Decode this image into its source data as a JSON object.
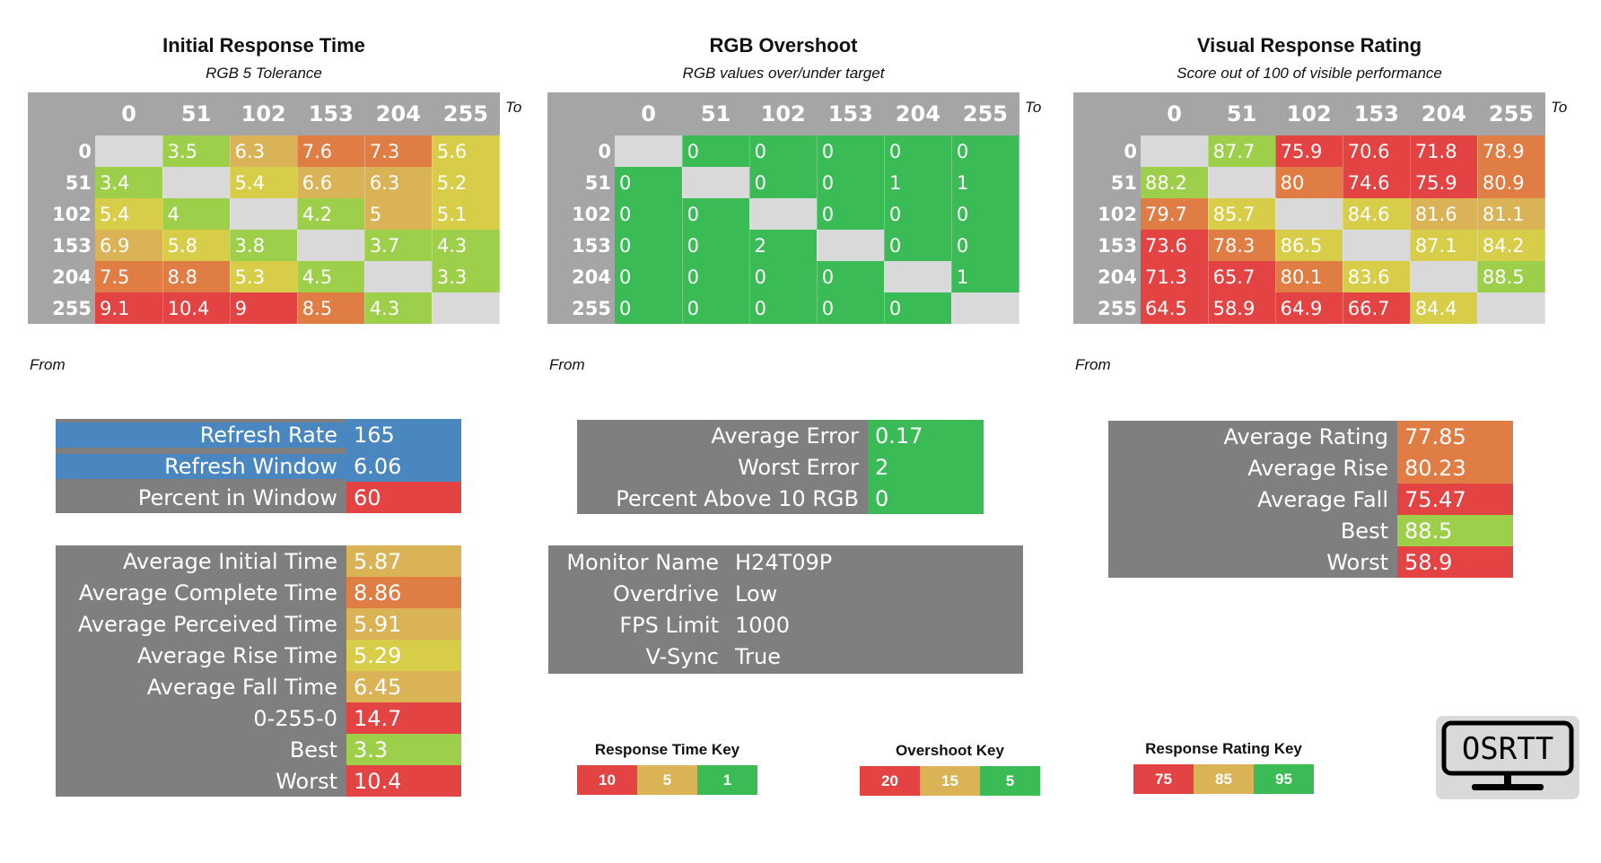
{
  "colors": {
    "red": "#e34343",
    "orange": "#e07d45",
    "gold": "#d9b356",
    "yellow": "#d8cd48",
    "lime": "#9dcf4a",
    "green": "#3bbb55",
    "diag": "#d9d9d9",
    "header": "#a5a5a5",
    "box": "#7f7f7f",
    "blue": "#4a86c0"
  },
  "corner": {
    "to": "To",
    "from": "From"
  },
  "chart_data": [
    {
      "type": "heatmap",
      "title": "Initial Response Time",
      "subtitle": "RGB 5 Tolerance",
      "xlabel": "To",
      "ylabel": "From",
      "x": [
        "0",
        "51",
        "102",
        "153",
        "204",
        "255"
      ],
      "y": [
        "0",
        "51",
        "102",
        "153",
        "204",
        "255"
      ],
      "values": [
        [
          null,
          "3.5",
          "6.3",
          "7.6",
          "7.3",
          "5.6"
        ],
        [
          "3.4",
          null,
          "5.4",
          "6.6",
          "6.3",
          "5.2"
        ],
        [
          "5.4",
          "4",
          null,
          "4.2",
          "5",
          "5.1"
        ],
        [
          "6.9",
          "5.8",
          "3.8",
          null,
          "3.7",
          "4.3"
        ],
        [
          "7.5",
          "8.8",
          "5.3",
          "4.5",
          null,
          "3.3"
        ],
        [
          "9.1",
          "10.4",
          "9",
          "8.5",
          "4.3",
          null
        ]
      ],
      "cell_colors": [
        [
          "diag",
          "lime",
          "gold",
          "orange",
          "orange",
          "yellow"
        ],
        [
          "lime",
          "diag",
          "yellow",
          "gold",
          "gold",
          "yellow"
        ],
        [
          "yellow",
          "lime",
          "diag",
          "lime",
          "gold",
          "yellow"
        ],
        [
          "gold",
          "yellow",
          "lime",
          "diag",
          "lime",
          "lime"
        ],
        [
          "orange",
          "orange",
          "yellow",
          "lime",
          "diag",
          "lime"
        ],
        [
          "red",
          "red",
          "red",
          "orange",
          "lime",
          "diag"
        ]
      ]
    },
    {
      "type": "heatmap",
      "title": "RGB Overshoot",
      "subtitle": "RGB values over/under target",
      "xlabel": "To",
      "ylabel": "From",
      "x": [
        "0",
        "51",
        "102",
        "153",
        "204",
        "255"
      ],
      "y": [
        "0",
        "51",
        "102",
        "153",
        "204",
        "255"
      ],
      "values": [
        [
          null,
          "0",
          "0",
          "0",
          "0",
          "0"
        ],
        [
          "0",
          null,
          "0",
          "0",
          "1",
          "1"
        ],
        [
          "0",
          "0",
          null,
          "0",
          "0",
          "0"
        ],
        [
          "0",
          "0",
          "2",
          null,
          "0",
          "0"
        ],
        [
          "0",
          "0",
          "0",
          "0",
          null,
          "1"
        ],
        [
          "0",
          "0",
          "0",
          "0",
          "0",
          null
        ]
      ],
      "cell_colors": [
        [
          "diag",
          "green",
          "green",
          "green",
          "green",
          "green"
        ],
        [
          "green",
          "diag",
          "green",
          "green",
          "green",
          "green"
        ],
        [
          "green",
          "green",
          "diag",
          "green",
          "green",
          "green"
        ],
        [
          "green",
          "green",
          "green",
          "diag",
          "green",
          "green"
        ],
        [
          "green",
          "green",
          "green",
          "green",
          "diag",
          "green"
        ],
        [
          "green",
          "green",
          "green",
          "green",
          "green",
          "diag"
        ]
      ]
    },
    {
      "type": "heatmap",
      "title": "Visual Response Rating",
      "subtitle": "Score out of 100 of visible performance",
      "xlabel": "To",
      "ylabel": "From",
      "x": [
        "0",
        "51",
        "102",
        "153",
        "204",
        "255"
      ],
      "y": [
        "0",
        "51",
        "102",
        "153",
        "204",
        "255"
      ],
      "values": [
        [
          null,
          "87.7",
          "75.9",
          "70.6",
          "71.8",
          "78.9"
        ],
        [
          "88.2",
          null,
          "80",
          "74.6",
          "75.9",
          "80.9"
        ],
        [
          "79.7",
          "85.7",
          null,
          "84.6",
          "81.6",
          "81.1"
        ],
        [
          "73.6",
          "78.3",
          "86.5",
          null,
          "87.1",
          "84.2"
        ],
        [
          "71.3",
          "65.7",
          "80.1",
          "83.6",
          null,
          "88.5"
        ],
        [
          "64.5",
          "58.9",
          "64.9",
          "66.7",
          "84.4",
          null
        ]
      ],
      "cell_colors": [
        [
          "diag",
          "lime",
          "red",
          "red",
          "red",
          "orange"
        ],
        [
          "lime",
          "diag",
          "orange",
          "red",
          "red",
          "orange"
        ],
        [
          "orange",
          "yellow",
          "diag",
          "yellow",
          "gold",
          "gold"
        ],
        [
          "red",
          "orange",
          "yellow",
          "diag",
          "yellow",
          "yellow"
        ],
        [
          "red",
          "red",
          "orange",
          "yellow",
          "diag",
          "lime"
        ],
        [
          "red",
          "red",
          "red",
          "red",
          "yellow",
          "diag"
        ]
      ]
    }
  ],
  "refresh": [
    {
      "label": "Refresh Rate",
      "value": "165",
      "lab_color": "blue",
      "val_color": "blue"
    },
    {
      "label": "Refresh Window",
      "value": "6.06",
      "lab_color": "blue",
      "val_color": "blue"
    },
    {
      "label": "Percent in Window",
      "value": "60",
      "lab_color": "box",
      "val_color": "red"
    }
  ],
  "times": [
    {
      "label": "Average Initial Time",
      "value": "5.87",
      "val_color": "gold"
    },
    {
      "label": "Average Complete Time",
      "value": "8.86",
      "val_color": "orange"
    },
    {
      "label": "Average Perceived Time",
      "value": "5.91",
      "val_color": "gold"
    },
    {
      "label": "Average Rise Time",
      "value": "5.29",
      "val_color": "yellow"
    },
    {
      "label": "Average Fall Time",
      "value": "6.45",
      "val_color": "gold"
    },
    {
      "label": "0-255-0",
      "value": "14.7",
      "val_color": "red"
    },
    {
      "label": "Best",
      "value": "3.3",
      "val_color": "lime"
    },
    {
      "label": "Worst",
      "value": "10.4",
      "val_color": "red"
    }
  ],
  "overshoot_stats": [
    {
      "label": "Average Error",
      "value": "0.17",
      "val_color": "green"
    },
    {
      "label": "Worst Error",
      "value": "2",
      "val_color": "green"
    },
    {
      "label": "Percent Above 10 RGB",
      "value": "0",
      "val_color": "green"
    }
  ],
  "monitor": [
    {
      "label": "Monitor Name",
      "value": "H24T09P"
    },
    {
      "label": "Overdrive",
      "value": "Low"
    },
    {
      "label": "FPS Limit",
      "value": "1000"
    },
    {
      "label": "V-Sync",
      "value": "True"
    }
  ],
  "rating_stats": [
    {
      "label": "Average Rating",
      "value": "77.85",
      "val_color": "orange"
    },
    {
      "label": "Average Rise",
      "value": "80.23",
      "val_color": "orange"
    },
    {
      "label": "Average Fall",
      "value": "75.47",
      "val_color": "red"
    },
    {
      "label": "Best",
      "value": "88.5",
      "val_color": "lime"
    },
    {
      "label": "Worst",
      "value": "58.9",
      "val_color": "red"
    }
  ],
  "keys": [
    {
      "title": "Response Time Key",
      "cells": [
        {
          "t": "10",
          "c": "red"
        },
        {
          "t": "5",
          "c": "gold"
        },
        {
          "t": "1",
          "c": "green"
        }
      ]
    },
    {
      "title": "Overshoot Key",
      "cells": [
        {
          "t": "20",
          "c": "red"
        },
        {
          "t": "15",
          "c": "gold"
        },
        {
          "t": "5",
          "c": "green"
        }
      ]
    },
    {
      "title": "Response Rating Key",
      "cells": [
        {
          "t": "75",
          "c": "red"
        },
        {
          "t": "85",
          "c": "gold"
        },
        {
          "t": "95",
          "c": "green"
        }
      ]
    }
  ],
  "logo": {
    "text": "OSRTT"
  }
}
